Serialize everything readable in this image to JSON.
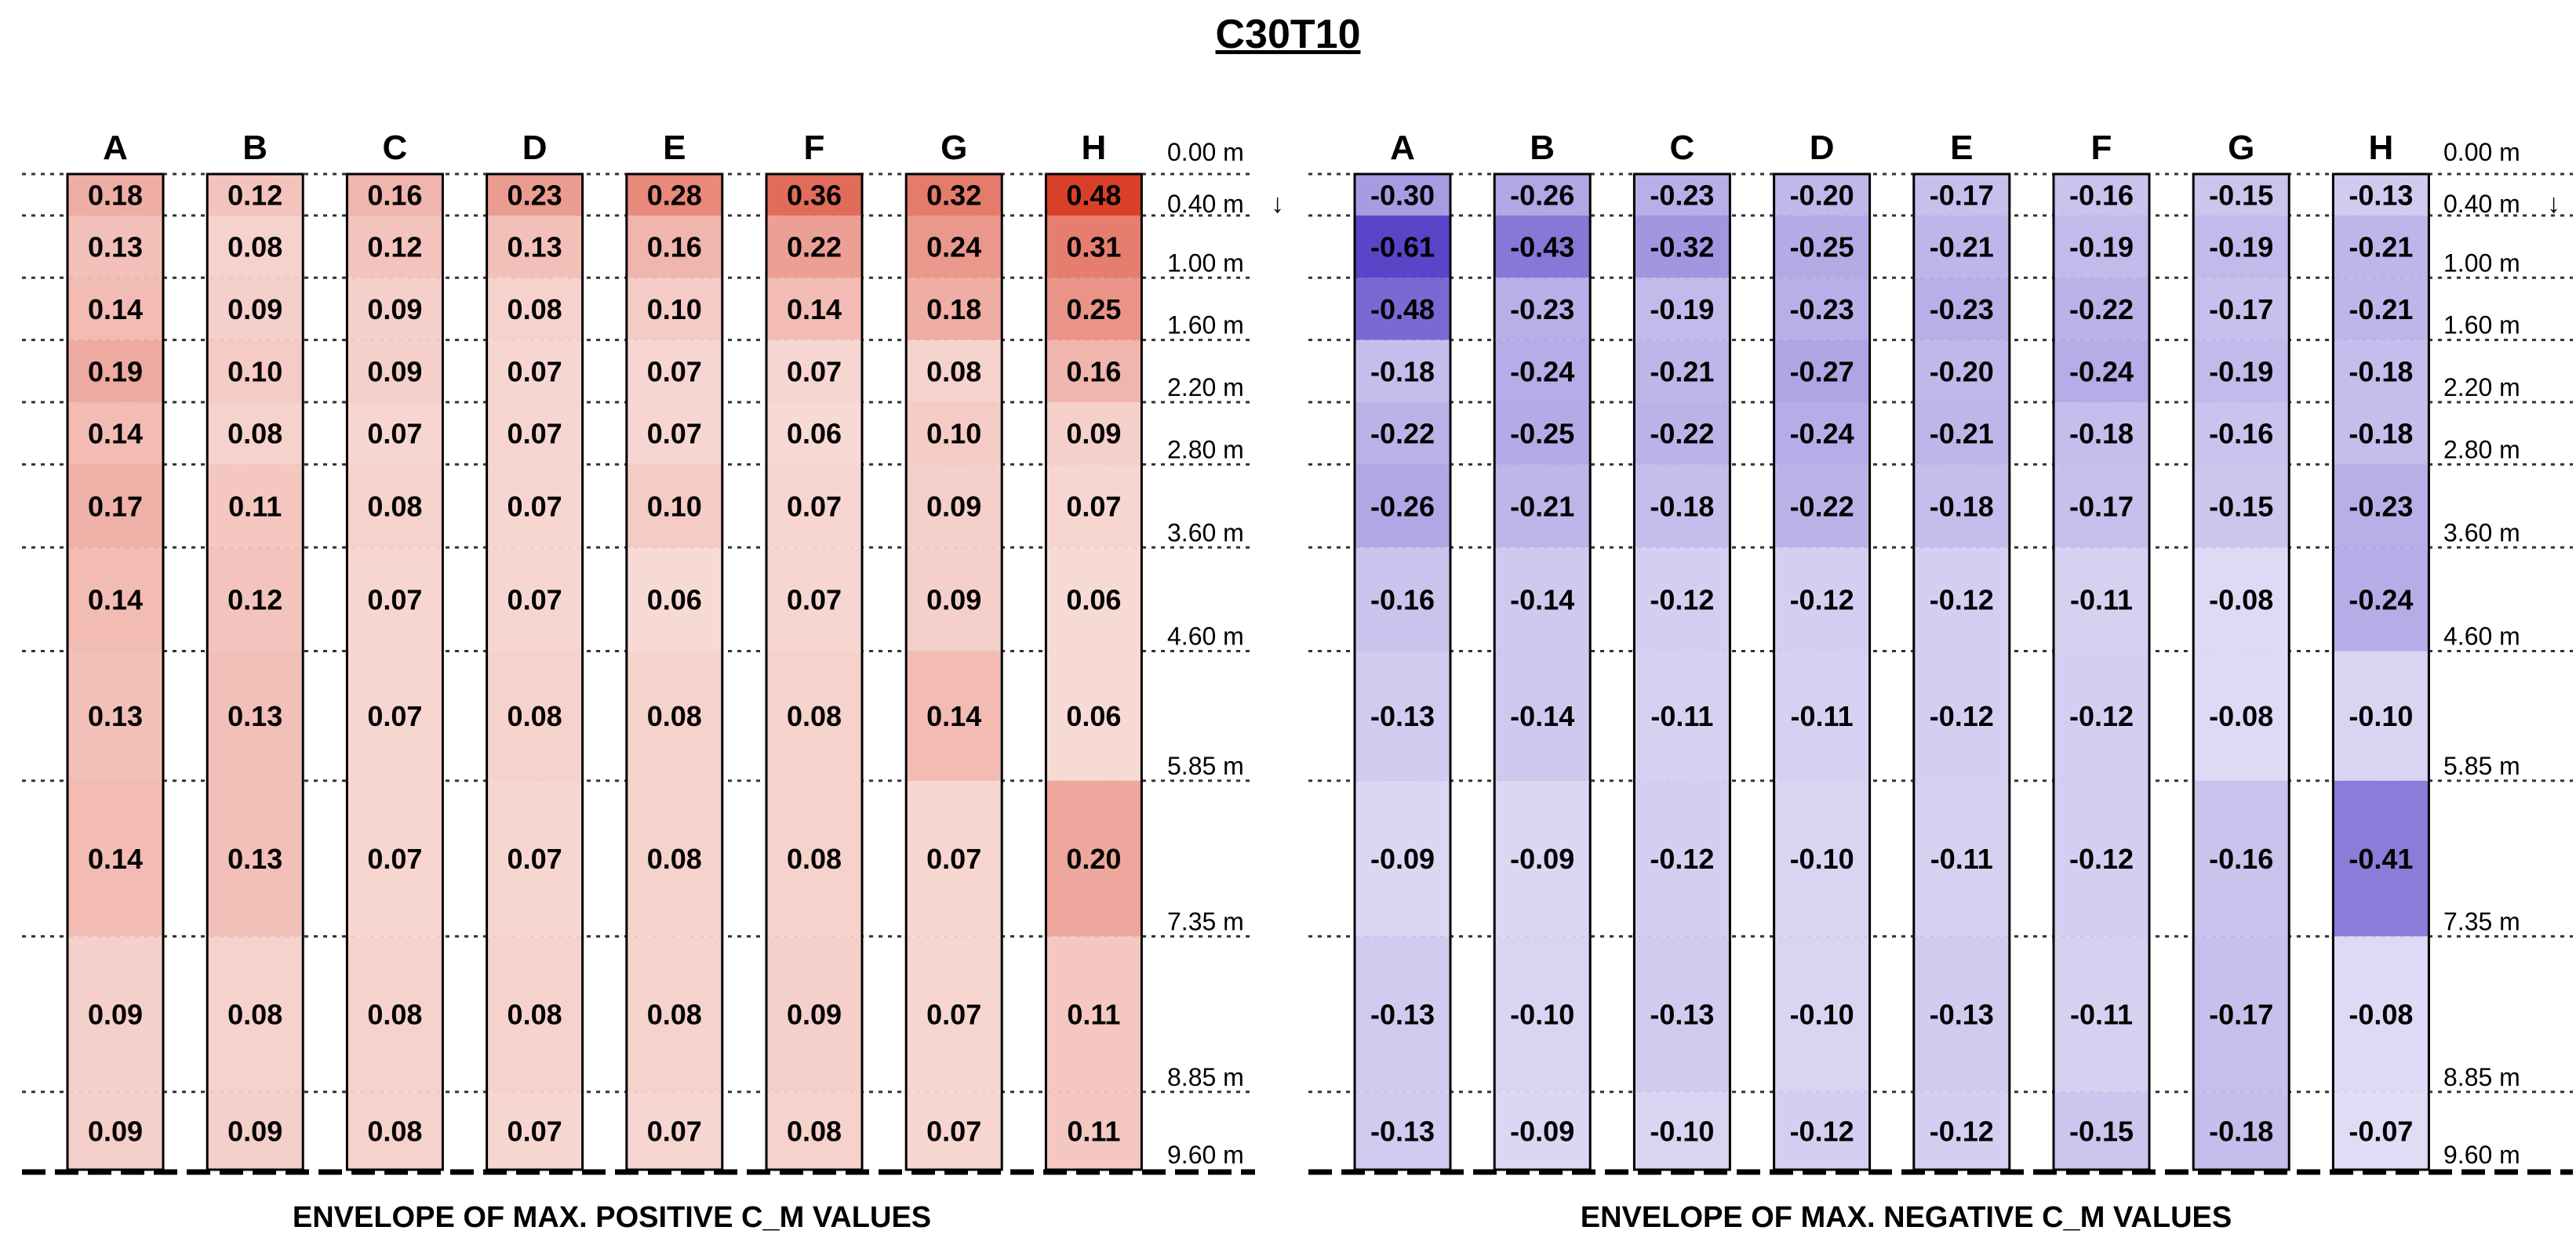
{
  "title": "C30T10",
  "depth_ticks": [
    "0.00 m",
    "0.40 m",
    "1.00 m",
    "1.60 m",
    "2.20 m",
    "2.80 m",
    "3.60 m",
    "4.60 m",
    "5.85 m",
    "7.35 m",
    "8.85 m",
    "9.60 m"
  ],
  "arrow_glyph": "↓",
  "chart_data": [
    {
      "type": "heatmap",
      "title": "ENVELOPE OF MAX. POSITIVE C_M VALUES",
      "columns": [
        "A",
        "B",
        "C",
        "D",
        "E",
        "F",
        "G",
        "H"
      ],
      "depths_m": [
        0.0,
        0.4,
        1.0,
        1.6,
        2.2,
        2.8,
        3.6,
        4.6,
        5.85,
        7.35,
        8.85,
        9.6
      ],
      "color": "#d9402a",
      "values": [
        [
          0.18,
          0.12,
          0.16,
          0.23,
          0.28,
          0.36,
          0.32,
          0.48
        ],
        [
          0.13,
          0.08,
          0.12,
          0.13,
          0.16,
          0.22,
          0.24,
          0.31
        ],
        [
          0.14,
          0.09,
          0.09,
          0.08,
          0.1,
          0.14,
          0.18,
          0.25
        ],
        [
          0.19,
          0.1,
          0.09,
          0.07,
          0.07,
          0.07,
          0.08,
          0.16
        ],
        [
          0.14,
          0.08,
          0.07,
          0.07,
          0.07,
          0.06,
          0.1,
          0.09
        ],
        [
          0.17,
          0.11,
          0.08,
          0.07,
          0.1,
          0.07,
          0.09,
          0.07
        ],
        [
          0.14,
          0.12,
          0.07,
          0.07,
          0.06,
          0.07,
          0.09,
          0.06
        ],
        [
          0.13,
          0.13,
          0.07,
          0.08,
          0.08,
          0.08,
          0.14,
          0.06
        ],
        [
          0.14,
          0.13,
          0.07,
          0.07,
          0.08,
          0.08,
          0.07,
          0.2
        ],
        [
          0.09,
          0.08,
          0.08,
          0.08,
          0.08,
          0.09,
          0.07,
          0.11
        ],
        [
          0.09,
          0.09,
          0.08,
          0.07,
          0.07,
          0.08,
          0.07,
          0.11
        ]
      ]
    },
    {
      "type": "heatmap",
      "title": "ENVELOPE OF MAX. NEGATIVE C_M VALUES",
      "columns": [
        "A",
        "B",
        "C",
        "D",
        "E",
        "F",
        "G",
        "H"
      ],
      "depths_m": [
        0.0,
        0.4,
        1.0,
        1.6,
        2.2,
        2.8,
        3.6,
        4.6,
        5.85,
        7.35,
        8.85,
        9.6
      ],
      "color": "#5a44c8",
      "values": [
        [
          -0.3,
          -0.26,
          -0.23,
          -0.2,
          -0.17,
          -0.16,
          -0.15,
          -0.13
        ],
        [
          -0.61,
          -0.43,
          -0.32,
          -0.25,
          -0.21,
          -0.19,
          -0.19,
          -0.21
        ],
        [
          -0.48,
          -0.23,
          -0.19,
          -0.23,
          -0.23,
          -0.22,
          -0.17,
          -0.21
        ],
        [
          -0.18,
          -0.24,
          -0.21,
          -0.27,
          -0.2,
          -0.24,
          -0.19,
          -0.18
        ],
        [
          -0.22,
          -0.25,
          -0.22,
          -0.24,
          -0.21,
          -0.18,
          -0.16,
          -0.18
        ],
        [
          -0.26,
          -0.21,
          -0.18,
          -0.22,
          -0.18,
          -0.17,
          -0.15,
          -0.23
        ],
        [
          -0.16,
          -0.14,
          -0.12,
          -0.12,
          -0.12,
          -0.11,
          -0.08,
          -0.24
        ],
        [
          -0.13,
          -0.14,
          -0.11,
          -0.11,
          -0.12,
          -0.12,
          -0.08,
          -0.1
        ],
        [
          -0.09,
          -0.09,
          -0.12,
          -0.1,
          -0.11,
          -0.12,
          -0.16,
          -0.41
        ],
        [
          -0.13,
          -0.1,
          -0.13,
          -0.1,
          -0.13,
          -0.11,
          -0.17,
          -0.08
        ],
        [
          -0.13,
          -0.09,
          -0.1,
          -0.12,
          -0.12,
          -0.15,
          -0.18,
          -0.07
        ]
      ]
    }
  ]
}
